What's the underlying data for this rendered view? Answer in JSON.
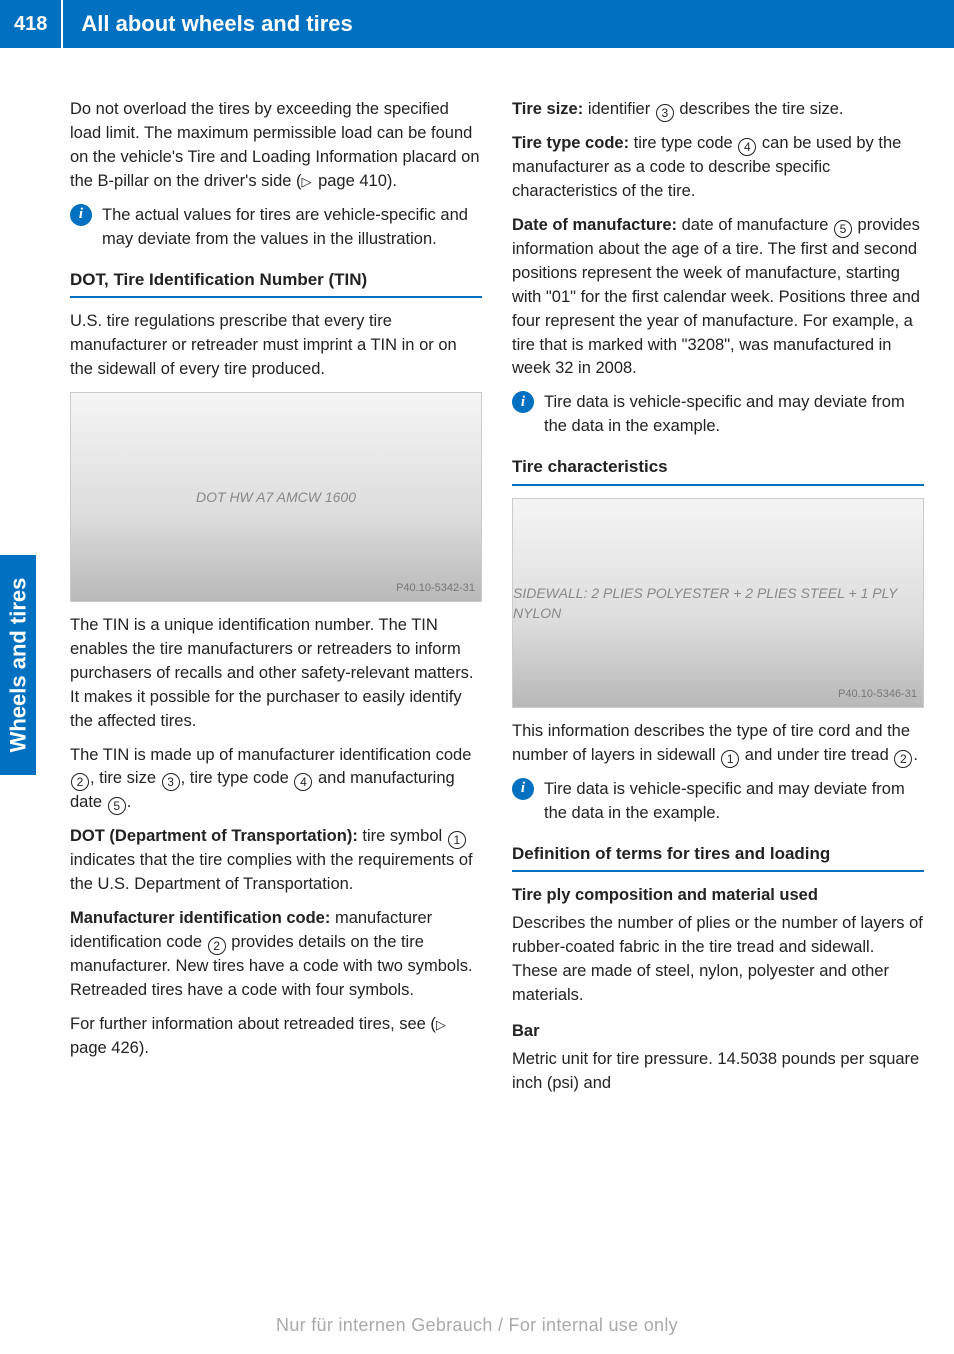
{
  "page_number": "418",
  "page_title": "All about wheels and tires",
  "side_tab": "Wheels and tires",
  "left": {
    "p1": "Do not overload the tires by exceeding the specified load limit. The maximum permissible load can be found on the vehicle's Tire and Loading Information placard on the B-pillar on the driver's side (",
    "p1_ref": " page 410).",
    "info1": "The actual values for tires are vehicle-specific and may deviate from the values in the illustration.",
    "h1": "DOT, Tire Identification Number (TIN)",
    "p2": "U.S. tire regulations prescribe that every tire manufacturer or retreader must imprint a TIN in or on the sidewall of every tire produced.",
    "img1_tag": "P40.10-5342-31",
    "img1_alt": "DOT HW A7  AMCW  1600",
    "p3": "The TIN is a unique identification number. The TIN enables the tire manufacturers or retreaders to inform purchasers of recalls and other safety-relevant matters. It makes it possible for the purchaser to easily identify the affected tires.",
    "p4a": "The TIN is made up of manufacturer identification code ",
    "p4b": ", tire size ",
    "p4c": ", tire type code ",
    "p4d": " and manufacturing date ",
    "p4e": ".",
    "p5_lead": "DOT (Department of Transportation):",
    "p5a": " tire symbol ",
    "p5b": " indicates that the tire complies with the requirements of the U.S. Department of Transportation.",
    "p6_lead": "Manufacturer identification code:",
    "p6a": " manufacturer identification code ",
    "p6b": " provides details on the tire manufacturer. New tires have a code with two symbols. Retreaded tires have a code with four symbols.",
    "p7a": "For further information about retreaded tires, see (",
    "p7_ref": " page 426)."
  },
  "right": {
    "p1_lead": "Tire size:",
    "p1a": " identifier ",
    "p1b": " describes the tire size.",
    "p2_lead": "Tire type code:",
    "p2a": " tire type code ",
    "p2b": " can be used by the manufacturer as a code to describe specific characteristics of the tire.",
    "p3_lead": "Date of manufacture:",
    "p3a": " date of manufacture ",
    "p3b": " provides information about the age of a tire. The first and second positions represent the week of manufacture, starting with \"01\" for the first calendar week. Positions three and four represent the year of manufacture. For example, a tire that is marked with \"3208\", was manufactured in week 32 in 2008.",
    "info1": "Tire data is vehicle-specific and may deviate from the data in the example.",
    "h1": "Tire characteristics",
    "img1_tag": "P40.10-5346-31",
    "img1_alt": "SIDEWALL: 2 PLIES POLYESTER + 2 PLIES STEEL + 1 PLY NYLON",
    "p4a": "This information describes the type of tire cord and the number of layers in sidewall ",
    "p4b": " and under tire tread ",
    "p4c": ".",
    "info2": "Tire data is vehicle-specific and may deviate from the data in the example.",
    "h2": "Definition of terms for tires and loading",
    "sub1": "Tire ply composition and material used",
    "p5": "Describes the number of plies or the number of layers of rubber-coated fabric in the tire tread and sidewall. These are made of steel, nylon, polyester and other materials.",
    "sub2": "Bar",
    "p6": "Metric unit for tire pressure. 14.5038 pounds per square inch (psi) and"
  },
  "footer": "Nur für internen Gebrauch / For internal use only",
  "circled": {
    "1": "1",
    "2": "2",
    "3": "3",
    "4": "4",
    "5": "5"
  }
}
